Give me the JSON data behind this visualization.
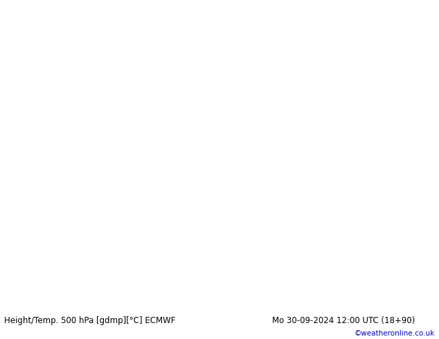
{
  "title_left": "Height/Temp. 500 hPa [gdmp][°C] ECMWF",
  "title_right": "Mo 30-09-2024 12:00 UTC (18+90)",
  "copyright": "©weatheronline.co.uk",
  "ocean_color": "#d8e8f0",
  "land_color": "#c8eec8",
  "land_edge_color": "#aaaaaa",
  "fig_width": 6.34,
  "fig_height": 4.9,
  "dpi": 100,
  "bottom_bar_color": "#e0e0e0",
  "title_fontsize": 8.5,
  "copyright_fontsize": 7.5,
  "copyright_color": "#0000bb",
  "extent": [
    80,
    210,
    -65,
    10
  ],
  "contour_lw_thick": 1.8,
  "contour_lw_thin": 0.9,
  "contour_color": "black",
  "temp_red": "#dd0000",
  "temp_orange": "#ff8800",
  "temp_yellow_green": "#88cc00",
  "temp_green": "#44aa00",
  "temp_cyan": "#00bbdd",
  "temp_blue": "#2244ff"
}
